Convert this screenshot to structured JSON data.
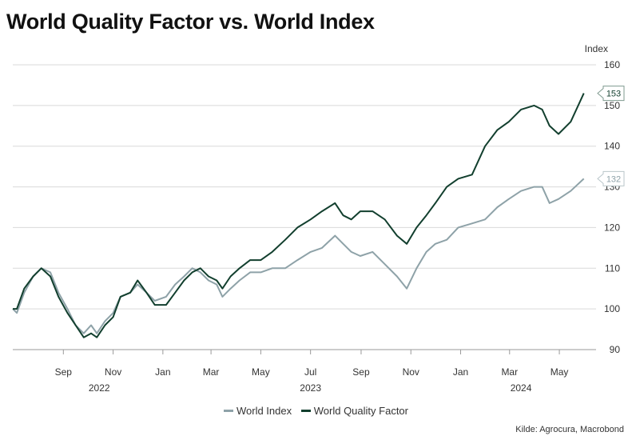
{
  "title": "World Quality Factor vs. World Index",
  "source": "Kilde: Agrocura, Macrobond",
  "colors": {
    "world_index": "#8ea2a8",
    "quality": "#123f2e",
    "grid": "#d9d9d9"
  },
  "chart_data": {
    "type": "line",
    "title": "World Quality Factor vs. World Index",
    "ylabel": "Index",
    "ylim": [
      90,
      160
    ],
    "yticks": [
      90,
      100,
      110,
      120,
      130,
      140,
      150,
      160
    ],
    "xlim": [
      "2022-07-01",
      "2024-06-15"
    ],
    "xticks": [
      {
        "date": "2022-09-01",
        "label": "Sep"
      },
      {
        "date": "2022-11-01",
        "label": "Nov"
      },
      {
        "date": "2023-01-01",
        "label": "Jan"
      },
      {
        "date": "2023-03-01",
        "label": "Mar"
      },
      {
        "date": "2023-05-01",
        "label": "May"
      },
      {
        "date": "2023-07-01",
        "label": "Jul"
      },
      {
        "date": "2023-09-01",
        "label": "Sep"
      },
      {
        "date": "2023-11-01",
        "label": "Nov"
      },
      {
        "date": "2024-01-01",
        "label": "Jan"
      },
      {
        "date": "2024-03-01",
        "label": "Mar"
      },
      {
        "date": "2024-05-01",
        "label": "May"
      }
    ],
    "year_labels": [
      {
        "date": "2022-10-15",
        "label": "2022"
      },
      {
        "date": "2023-07-01",
        "label": "2023"
      },
      {
        "date": "2024-03-15",
        "label": "2024"
      }
    ],
    "grid": true,
    "legend": "bottom-center",
    "series": [
      {
        "name": "World Index",
        "color": "#8ea2a8",
        "last_value_label": "132",
        "points": [
          [
            "2022-07-01",
            100
          ],
          [
            "2022-07-06",
            99
          ],
          [
            "2022-07-15",
            104
          ],
          [
            "2022-07-26",
            108
          ],
          [
            "2022-08-05",
            110
          ],
          [
            "2022-08-16",
            109
          ],
          [
            "2022-08-26",
            104
          ],
          [
            "2022-09-06",
            100
          ],
          [
            "2022-09-16",
            96
          ],
          [
            "2022-09-26",
            94
          ],
          [
            "2022-10-05",
            96
          ],
          [
            "2022-10-12",
            94
          ],
          [
            "2022-10-22",
            97
          ],
          [
            "2022-11-01",
            99
          ],
          [
            "2022-11-10",
            103
          ],
          [
            "2022-11-22",
            104
          ],
          [
            "2022-12-01",
            106
          ],
          [
            "2022-12-12",
            104
          ],
          [
            "2022-12-22",
            102
          ],
          [
            "2023-01-05",
            103
          ],
          [
            "2023-01-16",
            106
          ],
          [
            "2023-01-27",
            108
          ],
          [
            "2023-02-06",
            110
          ],
          [
            "2023-02-16",
            109
          ],
          [
            "2023-02-26",
            107
          ],
          [
            "2023-03-08",
            106
          ],
          [
            "2023-03-15",
            103
          ],
          [
            "2023-03-25",
            105
          ],
          [
            "2023-04-05",
            107
          ],
          [
            "2023-04-18",
            109
          ],
          [
            "2023-05-01",
            109
          ],
          [
            "2023-05-15",
            110
          ],
          [
            "2023-05-31",
            110
          ],
          [
            "2023-06-15",
            112
          ],
          [
            "2023-07-01",
            114
          ],
          [
            "2023-07-15",
            115
          ],
          [
            "2023-07-31",
            118
          ],
          [
            "2023-08-10",
            116
          ],
          [
            "2023-08-20",
            114
          ],
          [
            "2023-08-31",
            113
          ],
          [
            "2023-09-15",
            114
          ],
          [
            "2023-09-30",
            111
          ],
          [
            "2023-10-15",
            108
          ],
          [
            "2023-10-27",
            105
          ],
          [
            "2023-11-08",
            110
          ],
          [
            "2023-11-20",
            114
          ],
          [
            "2023-12-01",
            116
          ],
          [
            "2023-12-15",
            117
          ],
          [
            "2023-12-29",
            120
          ],
          [
            "2024-01-15",
            121
          ],
          [
            "2024-01-31",
            122
          ],
          [
            "2024-02-15",
            125
          ],
          [
            "2024-02-29",
            127
          ],
          [
            "2024-03-15",
            129
          ],
          [
            "2024-03-31",
            130
          ],
          [
            "2024-04-10",
            130
          ],
          [
            "2024-04-19",
            126
          ],
          [
            "2024-04-30",
            127
          ],
          [
            "2024-05-15",
            129
          ],
          [
            "2024-05-31",
            132
          ]
        ]
      },
      {
        "name": "World Quality Factor",
        "color": "#123f2e",
        "last_value_label": "153",
        "points": [
          [
            "2022-07-01",
            100
          ],
          [
            "2022-07-06",
            100
          ],
          [
            "2022-07-15",
            105
          ],
          [
            "2022-07-26",
            108
          ],
          [
            "2022-08-05",
            110
          ],
          [
            "2022-08-16",
            108
          ],
          [
            "2022-08-26",
            103
          ],
          [
            "2022-09-06",
            99
          ],
          [
            "2022-09-16",
            96
          ],
          [
            "2022-09-26",
            93
          ],
          [
            "2022-10-05",
            94
          ],
          [
            "2022-10-12",
            93
          ],
          [
            "2022-10-22",
            96
          ],
          [
            "2022-11-01",
            98
          ],
          [
            "2022-11-10",
            103
          ],
          [
            "2022-11-22",
            104
          ],
          [
            "2022-12-01",
            107
          ],
          [
            "2022-12-12",
            104
          ],
          [
            "2022-12-22",
            101
          ],
          [
            "2023-01-05",
            101
          ],
          [
            "2023-01-16",
            104
          ],
          [
            "2023-01-27",
            107
          ],
          [
            "2023-02-06",
            109
          ],
          [
            "2023-02-16",
            110
          ],
          [
            "2023-02-26",
            108
          ],
          [
            "2023-03-08",
            107
          ],
          [
            "2023-03-15",
            105
          ],
          [
            "2023-03-25",
            108
          ],
          [
            "2023-04-05",
            110
          ],
          [
            "2023-04-18",
            112
          ],
          [
            "2023-05-01",
            112
          ],
          [
            "2023-05-15",
            114
          ],
          [
            "2023-05-31",
            117
          ],
          [
            "2023-06-15",
            120
          ],
          [
            "2023-07-01",
            122
          ],
          [
            "2023-07-15",
            124
          ],
          [
            "2023-07-31",
            126
          ],
          [
            "2023-08-10",
            123
          ],
          [
            "2023-08-20",
            122
          ],
          [
            "2023-08-31",
            124
          ],
          [
            "2023-09-15",
            124
          ],
          [
            "2023-09-30",
            122
          ],
          [
            "2023-10-15",
            118
          ],
          [
            "2023-10-27",
            116
          ],
          [
            "2023-11-08",
            120
          ],
          [
            "2023-11-20",
            123
          ],
          [
            "2023-12-01",
            126
          ],
          [
            "2023-12-15",
            130
          ],
          [
            "2023-12-29",
            132
          ],
          [
            "2024-01-15",
            133
          ],
          [
            "2024-01-31",
            140
          ],
          [
            "2024-02-15",
            144
          ],
          [
            "2024-02-29",
            146
          ],
          [
            "2024-03-15",
            149
          ],
          [
            "2024-03-31",
            150
          ],
          [
            "2024-04-10",
            149
          ],
          [
            "2024-04-19",
            145
          ],
          [
            "2024-04-30",
            143
          ],
          [
            "2024-05-15",
            146
          ],
          [
            "2024-05-31",
            153
          ]
        ]
      }
    ]
  }
}
